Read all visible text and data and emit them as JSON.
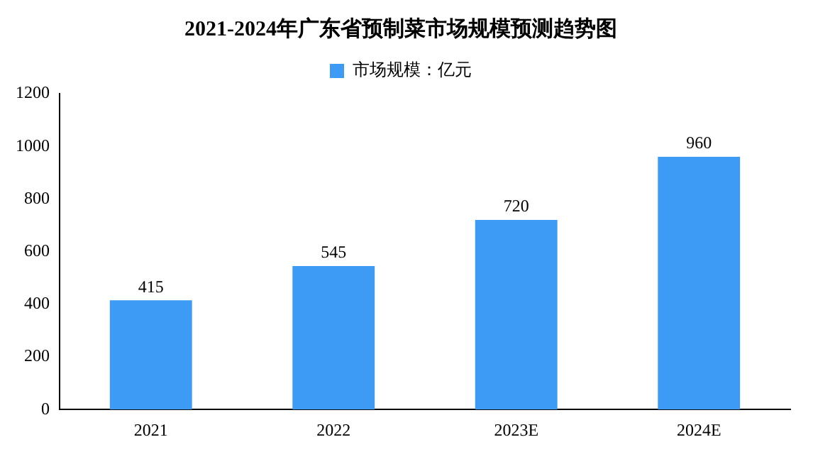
{
  "chart_data": {
    "type": "bar",
    "title": "2021-2024年广东省预制菜市场规模预测趋势图",
    "categories": [
      "2021",
      "2022",
      "2023E",
      "2024E"
    ],
    "series": [
      {
        "name": "市场规模：亿元",
        "color": "#3d9bf5",
        "values": [
          415,
          545,
          720,
          960
        ]
      }
    ],
    "ylim": [
      0,
      1200
    ],
    "yticks": [
      0,
      200,
      400,
      600,
      800,
      1000,
      1200
    ],
    "grid": false,
    "legend": "top",
    "data_labels": true
  }
}
